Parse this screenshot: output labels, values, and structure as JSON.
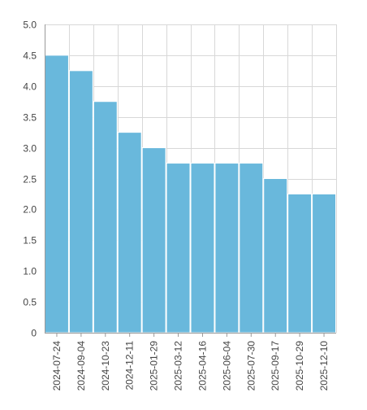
{
  "chart_data": {
    "type": "bar",
    "title": "",
    "xlabel": "",
    "ylabel": "",
    "categories": [
      "2024-07-24",
      "2024-09-04",
      "2024-10-23",
      "2024-12-11",
      "2025-01-29",
      "2025-03-12",
      "2025-04-16",
      "2025-06-04",
      "2025-07-30",
      "2025-09-17",
      "2025-10-29",
      "2025-12-10"
    ],
    "values": [
      4.5,
      4.25,
      3.75,
      3.25,
      3.0,
      2.75,
      2.75,
      2.75,
      2.75,
      2.5,
      2.25,
      2.25
    ],
    "ylim": [
      0,
      5
    ],
    "yticks": [
      "0",
      "0.5",
      "1.0",
      "1.5",
      "2.0",
      "2.5",
      "3.0",
      "3.5",
      "4.0",
      "4.5",
      "5.0"
    ],
    "ytick_values": [
      0,
      0.5,
      1.0,
      1.5,
      2.0,
      2.5,
      3.0,
      3.5,
      4.0,
      4.5,
      5.0
    ],
    "grid": true,
    "bar_color": "#69b8dc",
    "legend": "none"
  }
}
